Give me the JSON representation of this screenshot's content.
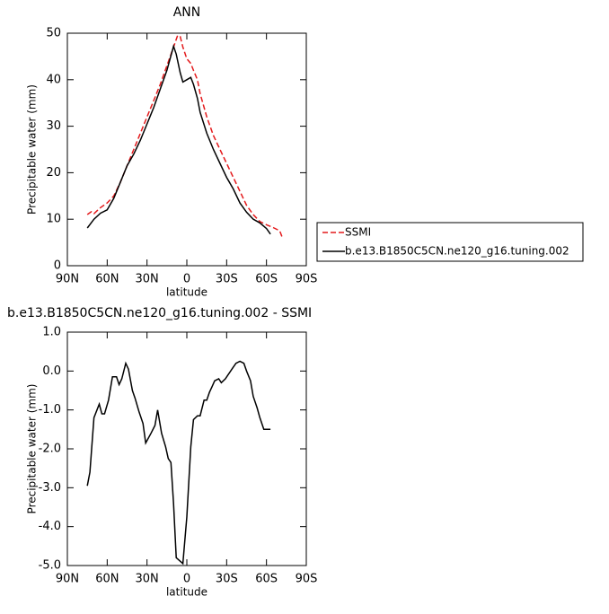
{
  "chart_data": [
    {
      "type": "line",
      "title": "ANN",
      "ylabel": "Precipitable water (mm)",
      "xlabel": "latitude",
      "xlim": [
        90,
        -90
      ],
      "ylim": [
        0,
        50
      ],
      "xticks": [
        {
          "value": 90,
          "label": "90N"
        },
        {
          "value": 60,
          "label": "60N"
        },
        {
          "value": 30,
          "label": "30N"
        },
        0,
        {
          "value": -30,
          "label": "30S"
        },
        {
          "value": -60,
          "label": "60S"
        },
        {
          "value": -90,
          "label": "90S"
        }
      ],
      "yticks": [
        0,
        10,
        20,
        30,
        40,
        50
      ],
      "legend": "right",
      "series": [
        {
          "name": "SSMI",
          "color": "#e41a1c",
          "linestyle": "dashed",
          "x": [
            75,
            72,
            70,
            65,
            60,
            55,
            50,
            45,
            40,
            35,
            30,
            25,
            20,
            15,
            10,
            7,
            5,
            3,
            0,
            -3,
            -5,
            -8,
            -10,
            -15,
            -20,
            -25,
            -30,
            -35,
            -40,
            -45,
            -50,
            -55,
            -60,
            -65,
            -70,
            -72
          ],
          "values": [
            11,
            11.6,
            11.2,
            12.5,
            13.5,
            15,
            18,
            21.5,
            25,
            28.5,
            32,
            35.5,
            39,
            43,
            47,
            49.5,
            49.3,
            47,
            44.5,
            43.5,
            42,
            40,
            37,
            32,
            28,
            25,
            22,
            19,
            16,
            13,
            11,
            9.5,
            8.8,
            8.2,
            7.5,
            6
          ]
        },
        {
          "name": "b.e13.B1850C5CN.ne120_g16.tuning.002",
          "color": "#000000",
          "linestyle": "solid",
          "x": [
            75,
            70,
            65,
            60,
            55,
            50,
            45,
            40,
            35,
            30,
            25,
            20,
            15,
            10,
            8,
            5,
            3,
            0,
            -3,
            -5,
            -8,
            -10,
            -15,
            -20,
            -25,
            -30,
            -35,
            -40,
            -45,
            -50,
            -55,
            -60,
            -63
          ],
          "values": [
            8.1,
            10,
            11.3,
            12,
            14.5,
            18,
            21.5,
            24,
            27,
            30.5,
            34,
            38,
            42,
            47.2,
            45.5,
            41.5,
            39.5,
            40,
            40.5,
            39,
            36,
            33,
            28.5,
            25,
            22,
            19,
            16.5,
            13.5,
            11.5,
            10,
            9.2,
            8,
            6.8
          ]
        }
      ]
    },
    {
      "type": "line",
      "title": "b.e13.B1850C5CN.ne120_g16.tuning.002 - SSMI",
      "ylabel": "Precipitable water (mm)",
      "xlabel": "latitude",
      "xlim": [
        90,
        -90
      ],
      "ylim": [
        -5,
        1
      ],
      "xticks": [
        {
          "value": 90,
          "label": "90N"
        },
        {
          "value": 60,
          "label": "60N"
        },
        {
          "value": 30,
          "label": "30N"
        },
        0,
        {
          "value": -30,
          "label": "30S"
        },
        {
          "value": -60,
          "label": "60S"
        },
        {
          "value": -90,
          "label": "90S"
        }
      ],
      "yticks": [
        {
          "value": 1,
          "label": "1.0"
        },
        {
          "value": 0,
          "label": "0.0"
        },
        {
          "value": -1,
          "label": "-1.0"
        },
        {
          "value": -2,
          "label": "-2.0"
        },
        {
          "value": -3,
          "label": "-3.0"
        },
        {
          "value": -4,
          "label": "-4.0"
        },
        {
          "value": -5,
          "label": "-5.0"
        }
      ],
      "series": [
        {
          "color": "#000000",
          "linestyle": "solid",
          "x": [
            75,
            73,
            70,
            66,
            64,
            62,
            59,
            56,
            53,
            51,
            49,
            46,
            44,
            41,
            39,
            36,
            33,
            31,
            27,
            24,
            22,
            19,
            16,
            14,
            12,
            10,
            8,
            3,
            0,
            -3,
            -5,
            -8,
            -10,
            -13,
            -15,
            -17,
            -19,
            -21,
            -24,
            -26,
            -29,
            -31,
            -34,
            -37,
            -40,
            -43,
            -45,
            -48,
            -50,
            -53,
            -55,
            -58,
            -63
          ],
          "values": [
            -2.95,
            -2.6,
            -1.2,
            -0.85,
            -1.1,
            -1.1,
            -0.75,
            -0.15,
            -0.15,
            -0.35,
            -0.2,
            0.2,
            0.05,
            -0.5,
            -0.7,
            -1.05,
            -1.35,
            -1.85,
            -1.6,
            -1.4,
            -1.0,
            -1.6,
            -1.95,
            -2.25,
            -2.35,
            -3.4,
            -4.8,
            -4.95,
            -3.75,
            -1.95,
            -1.25,
            -1.15,
            -1.15,
            -0.75,
            -0.75,
            -0.55,
            -0.4,
            -0.25,
            -0.2,
            -0.3,
            -0.2,
            -0.1,
            0.05,
            0.2,
            0.25,
            0.2,
            0.0,
            -0.25,
            -0.65,
            -0.95,
            -1.2,
            -1.5,
            -1.5
          ]
        }
      ]
    }
  ]
}
